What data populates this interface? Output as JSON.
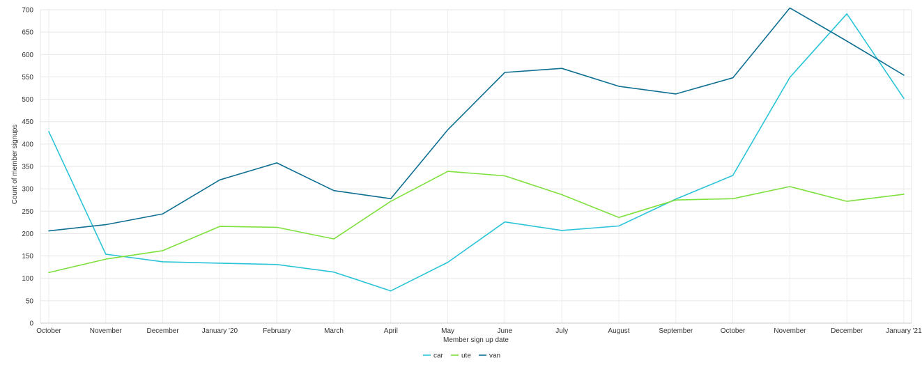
{
  "chart_data": {
    "type": "line",
    "title": "",
    "xlabel": "Member sign up date",
    "ylabel": "Count of member signups",
    "ylim": [
      0,
      700
    ],
    "yticks": [
      0,
      50,
      100,
      150,
      200,
      250,
      300,
      350,
      400,
      450,
      500,
      550,
      600,
      650,
      700
    ],
    "categories": [
      "October",
      "November",
      "December",
      "January '20",
      "February",
      "March",
      "April",
      "May",
      "June",
      "July",
      "August",
      "September",
      "October",
      "November",
      "December",
      "January '21"
    ],
    "grid": true,
    "legend_position": "bottom",
    "series": [
      {
        "name": "car",
        "color": "#2ac4d8",
        "values": [
          428,
          154,
          137,
          134,
          131,
          114,
          72,
          136,
          226,
          207,
          217,
          277,
          330,
          549,
          691,
          502
        ]
      },
      {
        "name": "ute",
        "color": "#7ee03c",
        "values": [
          113,
          143,
          162,
          216,
          214,
          188,
          272,
          339,
          329,
          287,
          236,
          275,
          278,
          305,
          272,
          288
        ]
      },
      {
        "name": "van",
        "color": "#0f6f93",
        "values": [
          206,
          220,
          244,
          320,
          358,
          296,
          278,
          432,
          560,
          569,
          529,
          512,
          548,
          704,
          630,
          554
        ]
      }
    ]
  }
}
